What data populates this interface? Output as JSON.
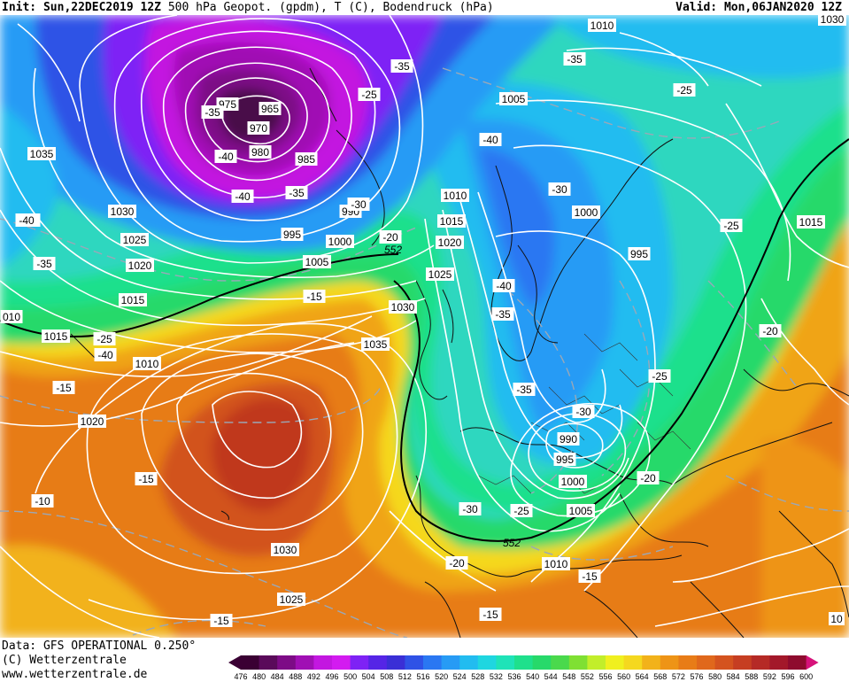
{
  "header": {
    "init": "Init: Sun,22DEC2019 12Z",
    "fields": "500 hPa Geopot. (gpdm), T (C), Bodendruck (hPa)",
    "valid": "Valid: Mon,06JAN2020 12Z"
  },
  "footer": {
    "data_source": "Data: GFS OPERATIONAL 0.250°",
    "copyright": "(C) Wetterzentrale",
    "url": "www.wetterzentrale.de"
  },
  "legend": {
    "values": [
      "476",
      "480",
      "484",
      "488",
      "492",
      "496",
      "500",
      "504",
      "508",
      "512",
      "516",
      "520",
      "524",
      "528",
      "532",
      "536",
      "540",
      "544",
      "548",
      "552",
      "556",
      "560",
      "564",
      "568",
      "572",
      "576",
      "580",
      "584",
      "588",
      "592",
      "596",
      "600"
    ],
    "colors": [
      "#3a0033",
      "#5a0a5a",
      "#7d0b86",
      "#a00fb4",
      "#c317e0",
      "#d31bf0",
      "#7e22f5",
      "#5525e6",
      "#3a2fd6",
      "#2f52e6",
      "#2a77f2",
      "#279bf5",
      "#22bcf0",
      "#1fd6e0",
      "#1fe3b8",
      "#1fe08c",
      "#27d96a",
      "#4ad94c",
      "#7fe033",
      "#c2ee2a",
      "#f0f01f",
      "#f5d81f",
      "#f2b21a",
      "#ee9416",
      "#e87c17",
      "#e0681c",
      "#d4531f",
      "#c63e22",
      "#b52a26",
      "#a3182a",
      "#8e0b2e",
      "#d6127a"
    ]
  },
  "pressure_labels": [
    "1010",
    "1035",
    "1030",
    "1025",
    "1020",
    "1015",
    "1010",
    "975",
    "965",
    "970",
    "980",
    "985",
    "990",
    "995",
    "1000",
    "1005",
    "1010",
    "1015",
    "1020",
    "1025",
    "1030",
    "1035",
    "1005",
    "1000",
    "995",
    "1015",
    "1010",
    "1020",
    "990",
    "995",
    "1000",
    "1005",
    "1010",
    "1030",
    "1025",
    "10",
    "1030",
    "010",
    "1015"
  ],
  "temp_labels": [
    "-35",
    "-35",
    "-25",
    "-40",
    "-35",
    "-40",
    "-40",
    "-35",
    "-30",
    "-20",
    "-35",
    "-35",
    "-25",
    "-40",
    "-35",
    "-35",
    "-30",
    "-25",
    "-20",
    "-15",
    "-15",
    "-20",
    "-25",
    "-30",
    "-40",
    "-25",
    "-15",
    "-10",
    "-15",
    "-15",
    "-20",
    "-15",
    "-30",
    "-25",
    "-40"
  ],
  "height_labels": [
    "552",
    "552"
  ]
}
